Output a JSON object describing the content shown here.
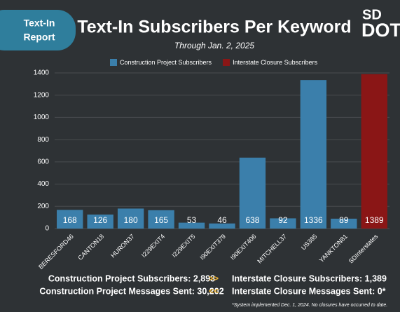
{
  "chart_data": {
    "type": "bar",
    "title": "Text-In Subscribers Per Keyword",
    "subtitle": "Through Jan. 2, 2025",
    "categories": [
      "BERESFORD46",
      "CANTON18",
      "HURON37",
      "I229EXIT4",
      "I229EXIT5",
      "I90EXIT379",
      "I90EXIT406",
      "MITCHELL37",
      "US385",
      "YANKTON81",
      "SDInterstates"
    ],
    "series": [
      {
        "name": "Construction Project Subscribers",
        "color": "#3b7fab",
        "values": [
          168,
          126,
          180,
          165,
          53,
          46,
          638,
          92,
          1336,
          89,
          null
        ]
      },
      {
        "name": "Interstate Closure Subscribers",
        "color": "#8a1616",
        "values": [
          null,
          null,
          null,
          null,
          null,
          null,
          null,
          null,
          null,
          null,
          1389
        ]
      }
    ],
    "ylim": [
      0,
      1400
    ],
    "yticks": [
      0,
      200,
      400,
      600,
      800,
      1000,
      1200,
      1400
    ],
    "grid": true,
    "legend": "top"
  },
  "badge": [
    "Text-In",
    "Report"
  ],
  "logo": [
    "SD",
    "DOT"
  ],
  "stats": {
    "left": [
      "Construction Project Subscribers: 2,893",
      "Construction Project Messages Sent: 30,202"
    ],
    "arrows": [
      ">>",
      "<<"
    ],
    "right": [
      "Interstate Closure Subscribers: 1,389",
      "Interstate Closure Messages Sent: 0*"
    ]
  },
  "footnote": "*System implemented Dec. 1, 2024. No closures have occurred to date."
}
